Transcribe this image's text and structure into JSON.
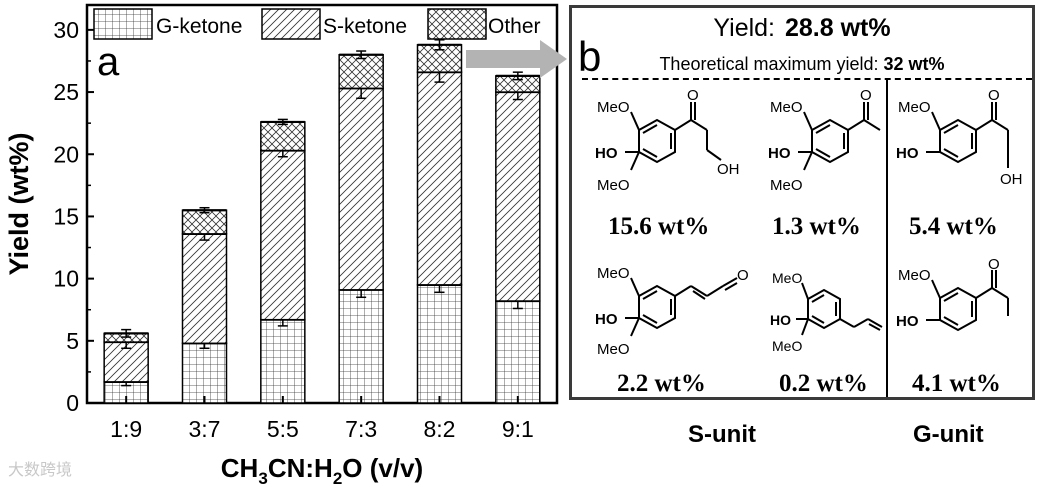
{
  "chart_data": {
    "type": "bar",
    "stacked": true,
    "panel_label": "a",
    "categories": [
      "1:9",
      "3:7",
      "5:5",
      "7:3",
      "8:2",
      "9:1"
    ],
    "series": [
      {
        "name": "G-ketone",
        "values": [
          1.7,
          4.8,
          6.7,
          9.1,
          9.5,
          8.2
        ],
        "pattern": "grid",
        "errors": [
          0.3,
          0.4,
          0.5,
          0.6,
          0.6,
          0.6
        ]
      },
      {
        "name": "S-ketone",
        "values": [
          3.2,
          8.8,
          13.6,
          16.2,
          17.1,
          16.8
        ],
        "pattern": "diagonal",
        "errors": [
          0.5,
          0.5,
          0.5,
          0.8,
          0.8,
          0.6
        ]
      },
      {
        "name": "Other",
        "values": [
          0.7,
          1.9,
          2.3,
          2.7,
          2.2,
          1.3
        ],
        "pattern": "crosshatch",
        "errors": [
          0.3,
          0.2,
          0.2,
          0.3,
          0.4,
          0.3
        ]
      }
    ],
    "xlabel_parts": [
      "CH",
      "3",
      "CN:H",
      "2",
      "O (v/v)"
    ],
    "ylabel": "Yield (wt%)",
    "ylim": [
      0,
      32
    ],
    "yticks": [
      "0",
      "5",
      "10",
      "15",
      "20",
      "25",
      "30"
    ],
    "grid": false,
    "legend": "top"
  },
  "panel_b": {
    "label": "b",
    "yield_label": "Yield:",
    "yield_value": "28.8 wt%",
    "theoretical_label": "Theoretical maximum yield:",
    "theoretical_value": "32 wt%",
    "groups": [
      {
        "name": "S-unit",
        "compounds": [
          "15.6 wt%",
          "1.3 wt%",
          "2.2 wt%",
          "0.2 wt%"
        ]
      },
      {
        "name": "G-unit",
        "compounds": [
          "5.4 wt%",
          "4.1 wt%"
        ]
      }
    ],
    "atom_labels": {
      "meo": "MeO",
      "ho": "HO",
      "oh": "OH",
      "o": "O"
    }
  },
  "watermark": "大数跨境"
}
